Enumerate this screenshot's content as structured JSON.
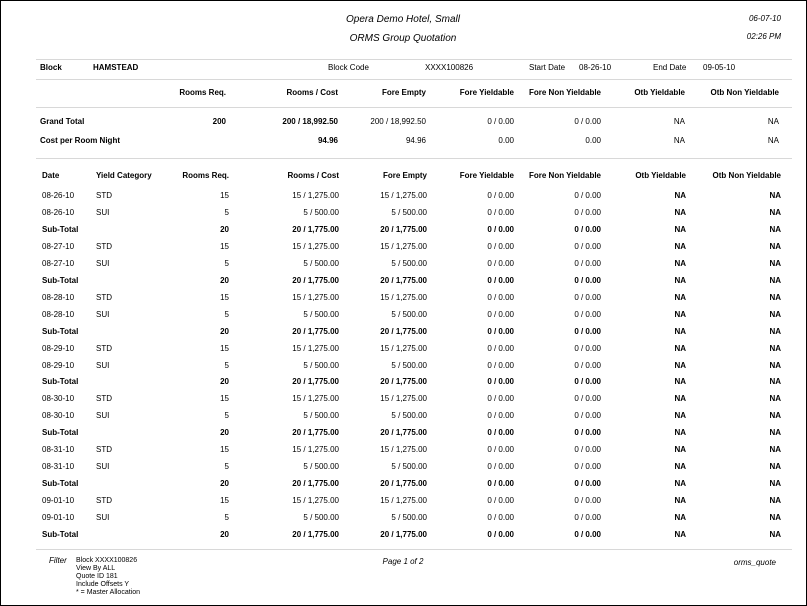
{
  "header": {
    "title": "Opera Demo Hotel, Small",
    "subtitle": "ORMS Group Quotation",
    "date": "06-07-10",
    "time": "02:26 PM"
  },
  "block_info": {
    "block_label": "Block",
    "block": "HAMSTEAD",
    "code_label": "Block Code",
    "code": "XXXX100826",
    "start_label": "Start Date",
    "start": "08-26-10",
    "end_label": "End Date",
    "end": "09-05-10"
  },
  "summary": {
    "columns": [
      "Rooms Req.",
      "Rooms / Cost",
      "Fore Empty",
      "Fore Yieldable",
      "Fore Non Yieldable",
      "Otb Yieldable",
      "Otb Non Yieldable"
    ],
    "rows": [
      [
        "Grand Total",
        "200",
        "200 / 18,992.50",
        "200 / 18,992.50",
        "0 / 0.00",
        "0 / 0.00",
        "NA",
        "NA"
      ],
      [
        "Cost per Room Night",
        null,
        "94.96",
        "94.96",
        "0.00",
        "0.00",
        "NA",
        "NA"
      ]
    ]
  },
  "detail": {
    "columns": [
      "Date",
      "Yield Category",
      "Rooms Req.",
      "Rooms / Cost",
      "Fore Empty",
      "Fore Yieldable",
      "Fore Non Yieldable",
      "Otb Yieldable",
      "Otb Non Yieldable"
    ],
    "rows": [
      [
        "08-26-10",
        "STD",
        "15",
        "15 / 1,275.00",
        "15 / 1,275.00",
        "0 / 0.00",
        "0 / 0.00",
        "NA",
        "NA"
      ],
      [
        "08-26-10",
        "SUI",
        "5",
        "5 / 500.00",
        "5 / 500.00",
        "0 / 0.00",
        "0 / 0.00",
        "NA",
        "NA"
      ],
      [
        "Sub-Total",
        null,
        "20",
        "20 / 1,775.00",
        "20 / 1,775.00",
        "0 / 0.00",
        "0 / 0.00",
        "NA",
        "NA"
      ],
      [
        "08-27-10",
        "STD",
        "15",
        "15 / 1,275.00",
        "15 / 1,275.00",
        "0 / 0.00",
        "0 / 0.00",
        "NA",
        "NA"
      ],
      [
        "08-27-10",
        "SUI",
        "5",
        "5 / 500.00",
        "5 / 500.00",
        "0 / 0.00",
        "0 / 0.00",
        "NA",
        "NA"
      ],
      [
        "Sub-Total",
        null,
        "20",
        "20 / 1,775.00",
        "20 / 1,775.00",
        "0 / 0.00",
        "0 / 0.00",
        "NA",
        "NA"
      ],
      [
        "08-28-10",
        "STD",
        "15",
        "15 / 1,275.00",
        "15 / 1,275.00",
        "0 / 0.00",
        "0 / 0.00",
        "NA",
        "NA"
      ],
      [
        "08-28-10",
        "SUI",
        "5",
        "5 / 500.00",
        "5 / 500.00",
        "0 / 0.00",
        "0 / 0.00",
        "NA",
        "NA"
      ],
      [
        "Sub-Total",
        null,
        "20",
        "20 / 1,775.00",
        "20 / 1,775.00",
        "0 / 0.00",
        "0 / 0.00",
        "NA",
        "NA"
      ],
      [
        "08-29-10",
        "STD",
        "15",
        "15 / 1,275.00",
        "15 / 1,275.00",
        "0 / 0.00",
        "0 / 0.00",
        "NA",
        "NA"
      ],
      [
        "08-29-10",
        "SUI",
        "5",
        "5 / 500.00",
        "5 / 500.00",
        "0 / 0.00",
        "0 / 0.00",
        "NA",
        "NA"
      ],
      [
        "Sub-Total",
        null,
        "20",
        "20 / 1,775.00",
        "20 / 1,775.00",
        "0 / 0.00",
        "0 / 0.00",
        "NA",
        "NA"
      ],
      [
        "08-30-10",
        "STD",
        "15",
        "15 / 1,275.00",
        "15 / 1,275.00",
        "0 / 0.00",
        "0 / 0.00",
        "NA",
        "NA"
      ],
      [
        "08-30-10",
        "SUI",
        "5",
        "5 / 500.00",
        "5 / 500.00",
        "0 / 0.00",
        "0 / 0.00",
        "NA",
        "NA"
      ],
      [
        "Sub-Total",
        null,
        "20",
        "20 / 1,775.00",
        "20 / 1,775.00",
        "0 / 0.00",
        "0 / 0.00",
        "NA",
        "NA"
      ],
      [
        "08-31-10",
        "STD",
        "15",
        "15 / 1,275.00",
        "15 / 1,275.00",
        "0 / 0.00",
        "0 / 0.00",
        "NA",
        "NA"
      ],
      [
        "08-31-10",
        "SUI",
        "5",
        "5 / 500.00",
        "5 / 500.00",
        "0 / 0.00",
        "0 / 0.00",
        "NA",
        "NA"
      ],
      [
        "Sub-Total",
        null,
        "20",
        "20 / 1,775.00",
        "20 / 1,775.00",
        "0 / 0.00",
        "0 / 0.00",
        "NA",
        "NA"
      ],
      [
        "09-01-10",
        "STD",
        "15",
        "15 / 1,275.00",
        "15 / 1,275.00",
        "0 / 0.00",
        "0 / 0.00",
        "NA",
        "NA"
      ],
      [
        "09-01-10",
        "SUI",
        "5",
        "5 / 500.00",
        "5 / 500.00",
        "0 / 0.00",
        "0 / 0.00",
        "NA",
        "NA"
      ],
      [
        "Sub-Total",
        null,
        "20",
        "20 / 1,775.00",
        "20 / 1,775.00",
        "0 / 0.00",
        "0 / 0.00",
        "NA",
        "NA"
      ]
    ]
  },
  "footer": {
    "filter_label": "Filter",
    "filter_lines": [
      "Block XXXX100826",
      "View By ALL",
      "Quote ID 181",
      "Include Offsets Y",
      "* = Master Allocation"
    ],
    "page": "Page 1 of 2",
    "report": "orms_quote"
  }
}
